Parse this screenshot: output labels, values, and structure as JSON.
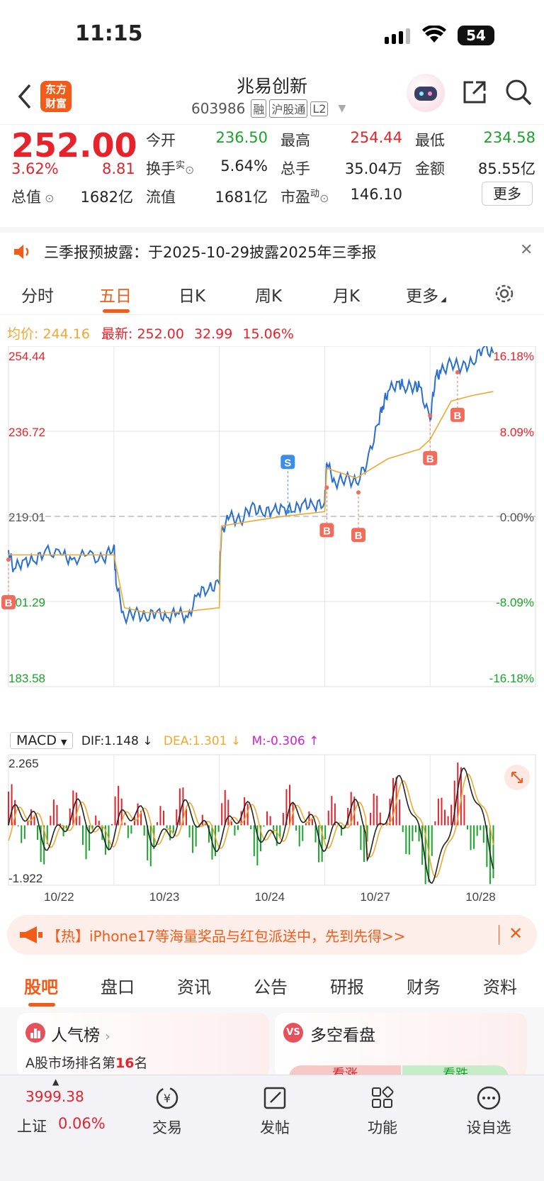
{
  "status_bar": {
    "time": "11:15",
    "battery": "54"
  },
  "header": {
    "back_icon": "chevron-left-icon",
    "logo_text_1": "东方",
    "logo_text_2": "财富",
    "stock_name": "兆易创新",
    "stock_code": "603986",
    "tags": [
      "融",
      "沪股通",
      "L2"
    ]
  },
  "quote": {
    "price": "252.00",
    "change_pct": "3.62%",
    "change": "8.81",
    "open_label": "今开",
    "open": "236.50",
    "high_label": "最高",
    "high": "254.44",
    "low_label": "最低",
    "low": "234.58",
    "turnover_label": "换手",
    "turnover_sup": "实",
    "turnover": "5.64%",
    "volume_label": "总手",
    "volume": "35.04万",
    "amount_label": "金额",
    "amount": "85.55亿",
    "mktcap_label": "总值",
    "mktcap": "1682亿",
    "float_label": "流值",
    "float": "1681亿",
    "pe_label": "市盈",
    "pe_sup": "动",
    "pe": "146.10",
    "more_button": "更多"
  },
  "notice": {
    "text": "三季报预披露：于2025-10-29披露2025年三季报"
  },
  "chart_tabs": [
    "分时",
    "五日",
    "日K",
    "周K",
    "月K",
    "更多"
  ],
  "chart_tabs_active": "五日",
  "chart_info": {
    "avg_label": "均价:",
    "avg": "244.16",
    "latest_label": "最新:",
    "latest": "252.00",
    "chg": "32.99",
    "chg_pct": "15.06%"
  },
  "chart_data": [
    {
      "type": "line",
      "x": [
        "10/22",
        "10/23",
        "10/24",
        "10/27",
        "10/28"
      ],
      "series": [
        {
          "name": "price",
          "color": "#2a6ed0",
          "values": [
            [
              0,
              212
            ],
            [
              0.05,
              208
            ],
            [
              0.15,
              210
            ],
            [
              0.25,
              209.5
            ],
            [
              0.35,
              212
            ],
            [
              0.5,
              211
            ],
            [
              0.6,
              210
            ],
            [
              0.75,
              211
            ],
            [
              0.9,
              210
            ],
            [
              1,
              213
            ],
            [
              1.02,
              205
            ],
            [
              1.1,
              198
            ],
            [
              1.2,
              199
            ],
            [
              1.3,
              198
            ],
            [
              1.4,
              199
            ],
            [
              1.5,
              198
            ],
            [
              1.6,
              199
            ],
            [
              1.7,
              198
            ],
            [
              1.8,
              203
            ],
            [
              1.9,
              204
            ],
            [
              2,
              205
            ],
            [
              2.02,
              216
            ],
            [
              2.1,
              219
            ],
            [
              2.2,
              218
            ],
            [
              2.3,
              221
            ],
            [
              2.4,
              220
            ],
            [
              2.5,
              220
            ],
            [
              2.6,
              221
            ],
            [
              2.7,
              220
            ],
            [
              2.8,
              222
            ],
            [
              2.9,
              221
            ],
            [
              3,
              222
            ],
            [
              3.02,
              230
            ],
            [
              3.1,
              226
            ],
            [
              3.2,
              227
            ],
            [
              3.3,
              226
            ],
            [
              3.4,
              230
            ],
            [
              3.5,
              238
            ],
            [
              3.55,
              242
            ],
            [
              3.6,
              245
            ],
            [
              3.7,
              247
            ],
            [
              3.75,
              246
            ],
            [
              3.85,
              246
            ],
            [
              3.9,
              246
            ],
            [
              4,
              239
            ],
            [
              4.05,
              248
            ],
            [
              4.1,
              249
            ],
            [
              4.2,
              251
            ],
            [
              4.3,
              250
            ],
            [
              4.4,
              251
            ],
            [
              4.5,
              254
            ],
            [
              4.6,
              253
            ]
          ]
        },
        {
          "name": "avg",
          "color": "#f0a830",
          "values": [
            [
              0,
              211
            ],
            [
              0.3,
              211
            ],
            [
              0.6,
              211
            ],
            [
              1,
              211
            ],
            [
              1.1,
              200
            ],
            [
              1.3,
              199
            ],
            [
              1.6,
              199
            ],
            [
              2,
              200
            ],
            [
              2.02,
              217
            ],
            [
              2.3,
              218
            ],
            [
              2.6,
              219
            ],
            [
              3,
              220
            ],
            [
              3.02,
              229
            ],
            [
              3.3,
              227
            ],
            [
              3.6,
              231
            ],
            [
              3.9,
              233
            ],
            [
              4,
              235
            ],
            [
              4.2,
              243
            ],
            [
              4.4,
              244.16
            ],
            [
              4.6,
              245
            ]
          ]
        }
      ],
      "y_left_ticks": [
        "254.44",
        "236.72",
        "219.01",
        "201.29",
        "183.58"
      ],
      "y_right_ticks": [
        "16.18%",
        "8.09%",
        "0.00%",
        "-8.09%",
        "-16.18%"
      ],
      "ylim": [
        183.58,
        254.44
      ],
      "markers": [
        {
          "label": "B",
          "x": 0,
          "y": 210
        },
        {
          "label": "S",
          "x": 2.65,
          "y": 220
        },
        {
          "label": "B",
          "x": 3.02,
          "y": 225
        },
        {
          "label": "B",
          "x": 3.32,
          "y": 224
        },
        {
          "label": "B",
          "x": 4.0,
          "y": 240
        },
        {
          "label": "B",
          "x": 4.26,
          "y": 249
        }
      ]
    },
    {
      "type": "bar",
      "title": "MACD",
      "dif_label": "DIF:1.148 ↓",
      "dea_label": "DEA:1.301 ↓",
      "m_label": "M:-0.306 ↑",
      "ylim": [
        -1.922,
        2.265
      ],
      "y_ticks": [
        "2.265",
        "-1.922"
      ]
    }
  ],
  "banner": {
    "text": "【热】iPhone17等海量奖品与红包派送中，先到先得>>"
  },
  "bottom_tabs": [
    "股吧",
    "盘口",
    "资讯",
    "公告",
    "研报",
    "财务",
    "资料"
  ],
  "bottom_tabs_active": "股吧",
  "cards": {
    "left_title": "人气榜",
    "left_sub_prefix": "A股市场排名第",
    "left_rank": "16",
    "left_sub_suffix": "名",
    "right_title": "多空看盘",
    "right_btn_up": "看涨",
    "right_btn_down": "看跌"
  },
  "nav": {
    "index_value": "3999.38",
    "index_name": "上证",
    "index_pct": "0.06%",
    "items": [
      "交易",
      "发帖",
      "功能",
      "设自选"
    ]
  }
}
